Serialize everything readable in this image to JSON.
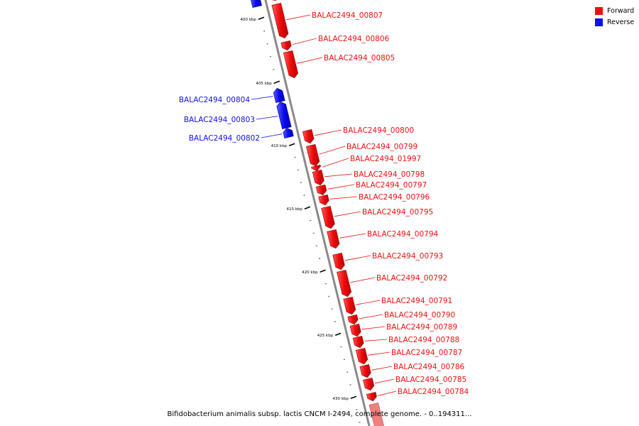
{
  "legend": {
    "forward_label": "Forward",
    "reverse_label": "Reverse",
    "forward_color": "#ee1111",
    "reverse_color": "#1111ee"
  },
  "caption": "Bifidobacterium animalis subsp. lactis CNCM I-2494, complete genome. - 0..194311...",
  "ticks": [
    {
      "label": "400 kbp",
      "kbp": 400
    },
    {
      "label": "405 kbp",
      "kbp": 405
    },
    {
      "label": "410 kbp",
      "kbp": 410
    },
    {
      "label": "415 kbp",
      "kbp": 415
    },
    {
      "label": "420 kbp",
      "kbp": 420
    },
    {
      "label": "425 kbp",
      "kbp": 425
    },
    {
      "label": "430 kbp",
      "kbp": 430
    }
  ],
  "genes": [
    {
      "name": "BALAC2494_00807",
      "strand": "forward"
    },
    {
      "name": "BALAC2494_00806",
      "strand": "forward"
    },
    {
      "name": "BALAC2494_00805",
      "strand": "forward"
    },
    {
      "name": "BALAC2494_00804",
      "strand": "reverse"
    },
    {
      "name": "BALAC2494_00803",
      "strand": "reverse"
    },
    {
      "name": "BALAC2494_00802",
      "strand": "reverse"
    },
    {
      "name": "BALAC2494_00800",
      "strand": "forward"
    },
    {
      "name": "BALAC2494_00799",
      "strand": "forward"
    },
    {
      "name": "BALAC2494_01997",
      "strand": "forward"
    },
    {
      "name": "BALAC2494_00798",
      "strand": "forward"
    },
    {
      "name": "BALAC2494_00797",
      "strand": "forward"
    },
    {
      "name": "BALAC2494_00796",
      "strand": "forward"
    },
    {
      "name": "BALAC2494_00795",
      "strand": "forward"
    },
    {
      "name": "BALAC2494_00794",
      "strand": "forward"
    },
    {
      "name": "BALAC2494_00793",
      "strand": "forward"
    },
    {
      "name": "BALAC2494_00792",
      "strand": "forward"
    },
    {
      "name": "BALAC2494_00791",
      "strand": "forward"
    },
    {
      "name": "BALAC2494_00790",
      "strand": "forward"
    },
    {
      "name": "BALAC2494_00789",
      "strand": "forward"
    },
    {
      "name": "BALAC2494_00788",
      "strand": "forward"
    },
    {
      "name": "BALAC2494_00787",
      "strand": "forward"
    },
    {
      "name": "BALAC2494_00786",
      "strand": "forward"
    },
    {
      "name": "BALAC2494_00785",
      "strand": "forward"
    },
    {
      "name": "BALAC2494_00784",
      "strand": "forward"
    }
  ]
}
